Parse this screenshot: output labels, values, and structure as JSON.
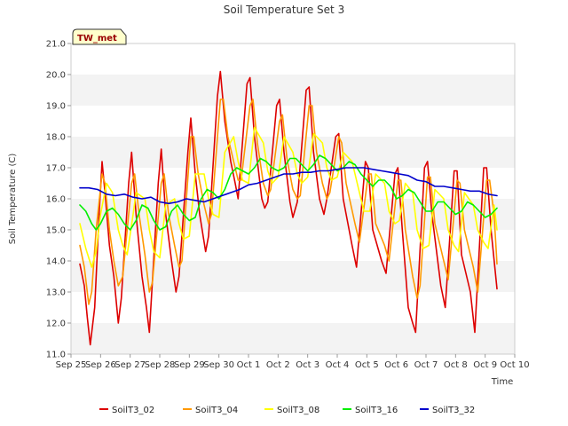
{
  "chart_data": {
    "type": "line",
    "title": "Soil Temperature Set 3",
    "xlabel": "Time",
    "ylabel": "Soil Temperature (C)",
    "site_label": "TW_met",
    "ylim": [
      11.0,
      21.0
    ],
    "xlim": [
      "Sep 25",
      "Oct 10"
    ],
    "yticks": [
      "11.0",
      "12.0",
      "13.0",
      "14.0",
      "15.0",
      "16.0",
      "17.0",
      "18.0",
      "19.0",
      "20.0",
      "21.0"
    ],
    "xticks": [
      "Sep 25",
      "Sep 26",
      "Sep 27",
      "Sep 28",
      "Sep 29",
      "Sep 30",
      "Oct 1",
      "Oct 2",
      "Oct 3",
      "Oct 4",
      "Oct 5",
      "Oct 6",
      "Oct 7",
      "Oct 8",
      "Oct 9",
      "Oct 10"
    ],
    "grid": "horizontal bands",
    "legend_position": "bottom",
    "series": [
      {
        "name": "SoilT3_02",
        "color": "#dd0000",
        "x": [
          0.3,
          0.45,
          0.55,
          0.65,
          0.8,
          0.95,
          1.05,
          1.15,
          1.3,
          1.45,
          1.6,
          1.7,
          1.95,
          2.05,
          2.2,
          2.4,
          2.55,
          2.65,
          2.95,
          3.05,
          3.2,
          3.4,
          3.55,
          3.65,
          3.95,
          4.05,
          4.2,
          4.35,
          4.55,
          4.65,
          4.95,
          5.05,
          5.2,
          5.4,
          5.55,
          5.65,
          5.95,
          6.05,
          6.2,
          6.45,
          6.55,
          6.65,
          6.95,
          7.05,
          7.2,
          7.4,
          7.5,
          7.65,
          7.95,
          8.05,
          8.2,
          8.4,
          8.55,
          8.65,
          8.95,
          9.05,
          9.2,
          9.5,
          9.65,
          9.95,
          10.05,
          10.2,
          10.5,
          10.65,
          10.95,
          11.05,
          11.2,
          11.4,
          11.55,
          11.65,
          11.95,
          12.05,
          12.2,
          12.5,
          12.65,
          12.95,
          13.05,
          13.2,
          13.5,
          13.65,
          13.95,
          14.05,
          14.2,
          14.4
        ],
        "y": [
          13.9,
          13.2,
          12.2,
          11.3,
          12.5,
          15.5,
          17.2,
          16.2,
          14.5,
          13.5,
          12.0,
          12.8,
          16.5,
          17.5,
          15.5,
          13.5,
          12.5,
          11.7,
          16.5,
          17.6,
          15.5,
          14.0,
          13.0,
          13.5,
          17.5,
          18.6,
          16.8,
          15.5,
          14.3,
          14.8,
          19.3,
          20.1,
          18.5,
          17.2,
          16.5,
          16.0,
          19.7,
          19.9,
          18.0,
          16.0,
          15.7,
          15.9,
          19.0,
          19.2,
          17.5,
          15.9,
          15.4,
          15.9,
          19.5,
          19.6,
          17.5,
          16.0,
          15.5,
          16.0,
          18.0,
          18.1,
          16.0,
          14.5,
          13.8,
          17.2,
          17.0,
          15.0,
          14.0,
          13.6,
          16.8,
          17.0,
          15.0,
          12.5,
          12.0,
          11.7,
          17.0,
          17.2,
          15.5,
          13.2,
          12.5,
          16.9,
          16.9,
          14.2,
          13.0,
          11.7,
          17.0,
          17.0,
          15.0,
          13.1
        ]
      },
      {
        "name": "SoilT3_04",
        "color": "#ff9900",
        "x": [
          0.3,
          0.45,
          0.6,
          0.7,
          0.85,
          1.05,
          1.15,
          1.3,
          1.45,
          1.6,
          1.75,
          2.05,
          2.15,
          2.3,
          2.5,
          2.65,
          2.75,
          3.05,
          3.15,
          3.3,
          3.5,
          3.65,
          3.75,
          4.05,
          4.15,
          4.3,
          4.5,
          4.65,
          4.75,
          5.05,
          5.15,
          5.3,
          5.5,
          5.65,
          5.75,
          6.05,
          6.15,
          6.3,
          6.5,
          6.65,
          6.75,
          7.05,
          7.15,
          7.3,
          7.5,
          7.65,
          7.75,
          8.05,
          8.15,
          8.3,
          8.5,
          8.65,
          8.75,
          9.05,
          9.15,
          9.3,
          9.6,
          9.75,
          10.05,
          10.15,
          10.3,
          10.6,
          10.75,
          11.05,
          11.15,
          11.3,
          11.55,
          11.7,
          11.8,
          12.05,
          12.15,
          12.3,
          12.6,
          12.75,
          13.05,
          13.15,
          13.3,
          13.6,
          13.75,
          14.05,
          14.15,
          14.3,
          14.4
        ],
        "y": [
          14.5,
          13.8,
          12.6,
          13.0,
          15.0,
          16.8,
          16.5,
          15.0,
          14.0,
          13.2,
          13.5,
          16.5,
          16.8,
          15.5,
          14.2,
          13.0,
          13.3,
          16.5,
          16.8,
          15.5,
          14.5,
          13.8,
          14.0,
          18.0,
          18.0,
          16.8,
          15.8,
          15.2,
          15.5,
          19.2,
          19.2,
          18.0,
          17.2,
          16.6,
          16.6,
          19.0,
          19.2,
          17.8,
          16.5,
          16.1,
          16.3,
          18.5,
          18.7,
          17.3,
          16.3,
          16.0,
          16.1,
          19.0,
          19.0,
          17.5,
          16.5,
          16.0,
          16.2,
          18.0,
          17.8,
          16.5,
          15.2,
          14.6,
          16.8,
          16.8,
          15.2,
          14.5,
          14.0,
          16.6,
          16.6,
          15.0,
          13.5,
          12.8,
          13.2,
          16.7,
          16.7,
          15.2,
          14.0,
          13.4,
          16.6,
          16.5,
          15.0,
          13.8,
          13.0,
          16.6,
          16.6,
          15.5,
          13.9
        ]
      },
      {
        "name": "SoilT3_08",
        "color": "#ffff00",
        "x": [
          0.3,
          0.5,
          0.7,
          0.85,
          1.0,
          1.2,
          1.4,
          1.6,
          1.75,
          1.9,
          2.1,
          2.2,
          2.5,
          2.65,
          2.8,
          3.0,
          3.2,
          3.5,
          3.65,
          3.8,
          4.0,
          4.2,
          4.5,
          4.65,
          4.8,
          5.0,
          5.2,
          5.5,
          5.65,
          5.8,
          6.0,
          6.2,
          6.5,
          6.65,
          6.8,
          7.0,
          7.2,
          7.5,
          7.65,
          7.8,
          8.0,
          8.2,
          8.5,
          8.65,
          8.8,
          9.0,
          9.2,
          9.5,
          9.75,
          9.9,
          10.1,
          10.3,
          10.6,
          10.75,
          10.95,
          11.1,
          11.3,
          11.55,
          11.7,
          11.9,
          12.1,
          12.3,
          12.6,
          12.75,
          12.95,
          13.1,
          13.3,
          13.6,
          13.75,
          13.95,
          14.1,
          14.3,
          14.4
        ],
        "y": [
          15.2,
          14.4,
          13.8,
          14.3,
          15.5,
          16.5,
          16.2,
          15.0,
          14.5,
          14.2,
          15.5,
          16.2,
          16.0,
          15.0,
          14.3,
          14.1,
          15.8,
          16.0,
          15.2,
          14.7,
          14.8,
          16.8,
          16.8,
          16.0,
          15.5,
          15.4,
          17.5,
          18.0,
          17.2,
          16.6,
          16.5,
          18.3,
          17.8,
          16.9,
          16.5,
          16.7,
          18.0,
          17.5,
          16.8,
          16.5,
          16.7,
          18.1,
          17.8,
          17.0,
          16.6,
          16.7,
          17.5,
          17.2,
          16.2,
          15.6,
          15.6,
          16.8,
          16.5,
          15.6,
          15.2,
          15.3,
          16.5,
          16.2,
          15.0,
          14.4,
          14.5,
          16.3,
          16.0,
          15.0,
          14.5,
          14.3,
          16.2,
          15.8,
          15.0,
          14.6,
          14.4,
          15.8,
          15.0
        ]
      },
      {
        "name": "SoilT3_16",
        "color": "#00ee00",
        "x": [
          0.3,
          0.5,
          0.7,
          0.85,
          1.0,
          1.2,
          1.4,
          1.6,
          1.8,
          2.0,
          2.2,
          2.4,
          2.6,
          2.8,
          3.0,
          3.2,
          3.4,
          3.6,
          3.8,
          4.0,
          4.2,
          4.4,
          4.6,
          4.8,
          5.0,
          5.2,
          5.4,
          5.6,
          5.8,
          6.0,
          6.2,
          6.4,
          6.6,
          6.8,
          7.0,
          7.2,
          7.4,
          7.6,
          7.8,
          8.0,
          8.2,
          8.4,
          8.6,
          8.8,
          9.0,
          9.2,
          9.4,
          9.6,
          9.8,
          10.0,
          10.2,
          10.4,
          10.6,
          10.8,
          11.0,
          11.2,
          11.4,
          11.6,
          11.8,
          12.0,
          12.2,
          12.4,
          12.6,
          12.8,
          13.0,
          13.2,
          13.4,
          13.6,
          13.8,
          14.0,
          14.2,
          14.4
        ],
        "y": [
          15.8,
          15.6,
          15.2,
          15.0,
          15.2,
          15.6,
          15.7,
          15.5,
          15.2,
          15.0,
          15.3,
          15.8,
          15.7,
          15.3,
          15.0,
          15.1,
          15.6,
          15.8,
          15.5,
          15.3,
          15.4,
          16.0,
          16.3,
          16.2,
          16.0,
          16.3,
          16.8,
          17.0,
          16.9,
          16.8,
          17.0,
          17.3,
          17.2,
          17.0,
          16.9,
          17.0,
          17.3,
          17.3,
          17.1,
          16.9,
          17.1,
          17.4,
          17.3,
          17.1,
          16.9,
          17.0,
          17.2,
          17.1,
          16.8,
          16.6,
          16.4,
          16.6,
          16.6,
          16.4,
          16.0,
          16.1,
          16.3,
          16.2,
          15.9,
          15.6,
          15.6,
          15.9,
          15.9,
          15.7,
          15.5,
          15.6,
          15.9,
          15.8,
          15.6,
          15.4,
          15.5,
          15.7
        ]
      },
      {
        "name": "SoilT3_32",
        "color": "#0000cc",
        "x": [
          0.3,
          0.6,
          0.9,
          1.2,
          1.5,
          1.8,
          2.1,
          2.4,
          2.7,
          3.0,
          3.3,
          3.6,
          3.9,
          4.2,
          4.5,
          4.8,
          5.1,
          5.4,
          5.7,
          6.0,
          6.3,
          6.6,
          6.9,
          7.2,
          7.5,
          7.8,
          8.1,
          8.4,
          8.7,
          9.0,
          9.3,
          9.6,
          9.9,
          10.2,
          10.5,
          10.8,
          11.1,
          11.4,
          11.7,
          12.0,
          12.3,
          12.6,
          12.9,
          13.2,
          13.5,
          13.8,
          14.1,
          14.4
        ],
        "y": [
          16.35,
          16.35,
          16.3,
          16.15,
          16.1,
          16.15,
          16.05,
          16.0,
          16.05,
          15.9,
          15.85,
          15.9,
          16.0,
          15.95,
          15.9,
          16.0,
          16.1,
          16.2,
          16.3,
          16.45,
          16.5,
          16.6,
          16.7,
          16.8,
          16.8,
          16.85,
          16.85,
          16.9,
          16.9,
          16.95,
          17.0,
          17.0,
          17.0,
          16.95,
          16.9,
          16.85,
          16.8,
          16.75,
          16.6,
          16.55,
          16.4,
          16.4,
          16.35,
          16.3,
          16.25,
          16.25,
          16.15,
          16.1
        ]
      }
    ]
  }
}
